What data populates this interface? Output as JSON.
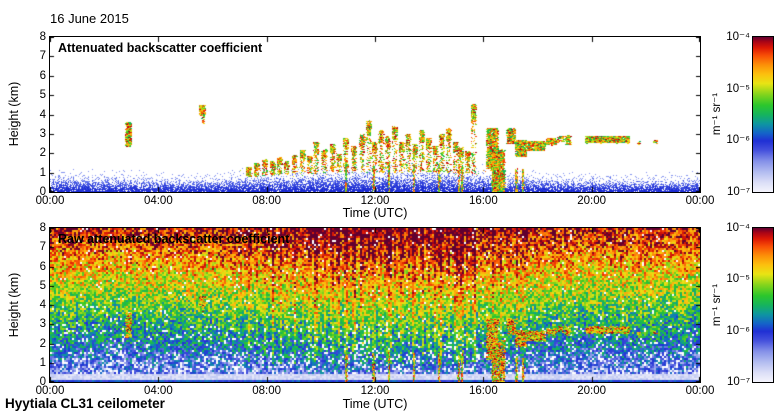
{
  "date_label": "16 June 2015",
  "footer_label": "Hyytiala CL31 ceilometer",
  "colors": {
    "background": "#ffffff",
    "frame": "#000000",
    "text": "#000000",
    "colormap": [
      [
        0,
        "#f4f4fc"
      ],
      [
        0.06,
        "#dcdff7"
      ],
      [
        0.13,
        "#b2bcf0"
      ],
      [
        0.2,
        "#8490e8"
      ],
      [
        0.27,
        "#4450dc"
      ],
      [
        0.33,
        "#2030d4"
      ],
      [
        0.38,
        "#1464c8"
      ],
      [
        0.44,
        "#0e96a0"
      ],
      [
        0.5,
        "#16b45c"
      ],
      [
        0.56,
        "#2cc62c"
      ],
      [
        0.63,
        "#84d41c"
      ],
      [
        0.7,
        "#e8e414"
      ],
      [
        0.76,
        "#fcc00e"
      ],
      [
        0.82,
        "#fc9008"
      ],
      [
        0.88,
        "#f85006"
      ],
      [
        0.93,
        "#dc1804"
      ],
      [
        0.97,
        "#a80416"
      ],
      [
        1,
        "#600030"
      ]
    ],
    "bl_blues": [
      "#1a2ad0",
      "#2c3cda",
      "#4052e2",
      "#5c6eea",
      "#8292f0",
      "#aab6f6"
    ]
  },
  "chart_data": [
    {
      "type": "heatmap",
      "title": "Attenuated backscatter coefficient",
      "xlabel": "Time (UTC)",
      "ylabel": "Height (km)",
      "x_range_hours": [
        0,
        24
      ],
      "y_range_km": [
        0,
        8
      ],
      "x_tick_labels": [
        "00:00",
        "04:00",
        "08:00",
        "12:00",
        "16:00",
        "20:00",
        "00:00"
      ],
      "y_tick_labels": [
        "8",
        "7",
        "6",
        "5",
        "4",
        "3",
        "2",
        "1",
        "0"
      ],
      "colorbar": {
        "scale": "log10",
        "tick_labels": [
          "10⁻⁴",
          "10⁻⁵",
          "10⁻⁶",
          "10⁻⁷"
        ],
        "unit": "m⁻¹ sr⁻¹",
        "max": "1e-4",
        "min": "1e-7"
      },
      "seed": 20150616,
      "boundary_layer": {
        "top_km": [
          [
            0,
            0.85
          ],
          [
            2,
            0.8
          ],
          [
            4,
            0.68
          ],
          [
            5.5,
            0.7
          ],
          [
            7,
            0.8
          ],
          [
            9,
            0.95
          ],
          [
            11,
            1.05
          ],
          [
            14,
            1.05
          ],
          [
            16,
            0.95
          ],
          [
            17,
            0.8
          ],
          [
            19,
            0.7
          ],
          [
            22,
            0.68
          ],
          [
            24,
            0.72
          ]
        ]
      },
      "fringe": {
        "t": [
          7.0,
          16.3
        ],
        "above_km": 0.28
      },
      "plumes": [
        [
          7.3,
          1.3
        ],
        [
          7.6,
          1.5
        ],
        [
          7.9,
          1.7
        ],
        [
          8.2,
          1.6
        ],
        [
          8.45,
          1.8
        ],
        [
          8.7,
          1.6
        ],
        [
          9.0,
          1.9
        ],
        [
          9.3,
          2.2
        ],
        [
          9.55,
          1.9
        ],
        [
          9.8,
          2.6
        ],
        [
          10.1,
          2.2
        ],
        [
          10.4,
          2.5
        ],
        [
          10.65,
          2.0
        ],
        [
          10.9,
          2.8
        ],
        [
          11.2,
          2.4
        ],
        [
          11.5,
          3.0
        ],
        [
          11.75,
          3.7
        ],
        [
          11.95,
          2.6
        ],
        [
          12.2,
          3.2
        ],
        [
          12.45,
          2.9
        ],
        [
          12.7,
          3.4
        ],
        [
          12.95,
          2.6
        ],
        [
          13.2,
          3.0
        ],
        [
          13.45,
          2.5
        ],
        [
          13.7,
          3.2
        ],
        [
          13.95,
          2.8
        ],
        [
          14.2,
          2.4
        ],
        [
          14.45,
          3.0
        ],
        [
          14.7,
          3.3
        ],
        [
          14.95,
          2.6
        ],
        [
          15.15,
          2.3
        ],
        [
          15.4,
          2.1
        ],
        [
          15.62,
          4.55
        ]
      ],
      "clouds": [
        {
          "t": [
            2.78,
            2.95
          ],
          "z": [
            2.35,
            3.6
          ],
          "d": 4
        },
        {
          "t": [
            5.5,
            5.68
          ],
          "z": [
            3.95,
            4.5
          ],
          "d": 3
        },
        {
          "t": [
            5.58,
            5.66
          ],
          "z": [
            3.55,
            3.95
          ],
          "d": 1.2
        },
        {
          "t": [
            16.1,
            16.5
          ],
          "z": [
            1.2,
            3.3
          ],
          "d": 2.6
        },
        {
          "t": [
            16.3,
            16.75
          ],
          "z": [
            0.0,
            2.2
          ],
          "d": 2.2
        },
        {
          "t": [
            16.85,
            17.15
          ],
          "z": [
            2.5,
            3.3
          ],
          "d": 2.6
        },
        {
          "t": [
            17.15,
            17.55
          ],
          "z": [
            1.85,
            2.7
          ],
          "d": 2.6
        },
        {
          "t": [
            17.55,
            18.25
          ],
          "z": [
            2.15,
            2.65
          ],
          "d": 2.6
        },
        {
          "t": [
            18.3,
            18.65
          ],
          "z": [
            2.45,
            2.8
          ],
          "d": 2.2
        },
        {
          "t": [
            18.7,
            18.95
          ],
          "z": [
            2.6,
            2.9
          ],
          "d": 1.4
        },
        {
          "t": [
            19.0,
            19.2
          ],
          "z": [
            2.45,
            2.95
          ],
          "d": 1.6
        },
        {
          "t": [
            19.75,
            21.35
          ],
          "z": [
            2.55,
            2.9
          ],
          "d": 3.2
        },
        {
          "t": [
            21.65,
            21.78
          ],
          "z": [
            2.45,
            2.62
          ],
          "d": 1.2
        },
        {
          "t": [
            22.25,
            22.4
          ],
          "z": [
            2.5,
            2.7
          ],
          "d": 1
        }
      ],
      "ground_streaks": [
        10.92,
        11.93,
        12.5,
        13.42,
        14.35,
        15.08,
        15.2,
        16.33,
        16.6,
        17.2,
        17.45
      ]
    },
    {
      "type": "heatmap",
      "title": "Raw attenuated backscatter coefficient",
      "xlabel": "Time (UTC)",
      "ylabel": "Height (km)",
      "x_range_hours": [
        0,
        24
      ],
      "y_range_km": [
        0,
        8
      ],
      "x_tick_labels": [
        "00:00",
        "04:00",
        "08:00",
        "12:00",
        "16:00",
        "20:00",
        "00:00"
      ],
      "y_tick_labels": [
        "8",
        "7",
        "6",
        "5",
        "4",
        "3",
        "2",
        "1",
        "0"
      ],
      "colorbar": {
        "scale": "log10",
        "tick_labels": [
          "10⁻⁴",
          "10⁻⁵",
          "10⁻⁶",
          "10⁻⁷"
        ],
        "unit": "m⁻¹ sr⁻¹",
        "max": "1e-4",
        "min": "1e-7"
      },
      "seed": 31337,
      "noise": {
        "base_offset": 0.14,
        "base_gain": 0.8,
        "gamma": 0.85,
        "jitter": 0.17,
        "day_boost": 0.06,
        "day_center_h": 12.5,
        "day_sigma_h": 3.5,
        "low_band_km": 0.45,
        "ground_band_km": 0.18,
        "white_speck_low": 0.18,
        "white_speck_high": 0.03
      },
      "overlay_panel1_features": true
    }
  ]
}
